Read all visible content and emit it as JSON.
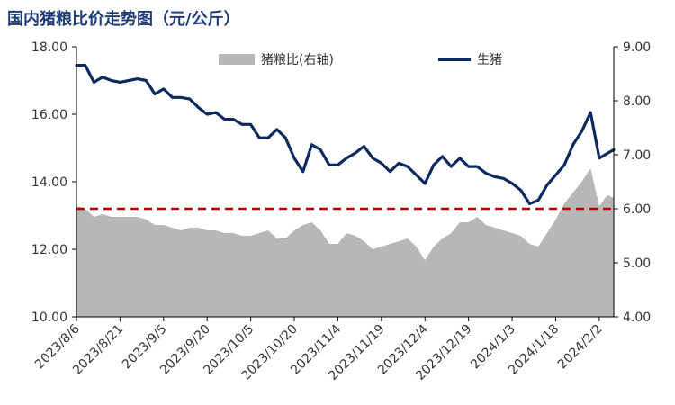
{
  "chart_data": {
    "type": "line",
    "title": "国内猪粮比价走势图（元/公斤）",
    "legend": {
      "placement": "top-center",
      "entries": [
        {
          "name": "猪粮比(右轴)",
          "type": "area",
          "color": "#b7b7b7"
        },
        {
          "name": "生猪",
          "type": "line",
          "color": "#0d2a5e"
        }
      ]
    },
    "y_left": {
      "min": 10,
      "max": 18,
      "ticks": [
        "10.00",
        "12.00",
        "14.00",
        "16.00",
        "18.00"
      ]
    },
    "y_right": {
      "min": 4,
      "max": 9,
      "ticks": [
        "4.00",
        "5.00",
        "6.00",
        "7.00",
        "8.00",
        "9.00"
      ]
    },
    "x_ticks": [
      "2023/8/6",
      "2023/8/21",
      "2023/9/5",
      "2023/9/20",
      "2023/10/5",
      "2023/10/20",
      "2023/11/4",
      "2023/11/19",
      "2023/12/4",
      "2023/12/19",
      "2024/1/3",
      "2024/1/18",
      "2024/2/2"
    ],
    "reference_line": {
      "axis": "right",
      "value": 6.0,
      "style": "dashed",
      "color": "#c00000"
    },
    "series": [
      {
        "name": "生猪",
        "axis": "left",
        "type": "line",
        "color": "#0d2a5e",
        "x": [
          "2023/8/6",
          "2023/8/9",
          "2023/8/12",
          "2023/8/15",
          "2023/8/18",
          "2023/8/21",
          "2023/8/24",
          "2023/8/27",
          "2023/8/30",
          "2023/9/2",
          "2023/9/5",
          "2023/9/8",
          "2023/9/11",
          "2023/9/14",
          "2023/9/17",
          "2023/9/20",
          "2023/9/23",
          "2023/9/26",
          "2023/9/29",
          "2023/10/2",
          "2023/10/5",
          "2023/10/8",
          "2023/10/11",
          "2023/10/14",
          "2023/10/17",
          "2023/10/20",
          "2023/10/23",
          "2023/10/26",
          "2023/10/29",
          "2023/11/1",
          "2023/11/4",
          "2023/11/7",
          "2023/11/10",
          "2023/11/13",
          "2023/11/16",
          "2023/11/19",
          "2023/11/22",
          "2023/11/25",
          "2023/11/28",
          "2023/12/1",
          "2023/12/4",
          "2023/12/7",
          "2023/12/10",
          "2023/12/13",
          "2023/12/16",
          "2023/12/19",
          "2023/12/22",
          "2023/12/25",
          "2023/12/28",
          "2023/12/31",
          "2024/1/3",
          "2024/1/6",
          "2024/1/9",
          "2024/1/12",
          "2024/1/15",
          "2024/1/18",
          "2024/1/21",
          "2024/1/24",
          "2024/1/27",
          "2024/1/30",
          "2024/2/2",
          "2024/2/4",
          "2024/2/5",
          "2024/2/7"
        ],
        "values": [
          17.45,
          17.45,
          16.95,
          17.1,
          17.0,
          16.95,
          17.0,
          17.05,
          17.0,
          16.6,
          16.75,
          16.5,
          16.5,
          16.45,
          16.2,
          16.0,
          16.05,
          15.85,
          15.85,
          15.7,
          15.7,
          15.3,
          15.3,
          15.55,
          15.3,
          14.7,
          14.3,
          15.1,
          14.95,
          14.5,
          14.5,
          14.7,
          14.85,
          15.05,
          14.7,
          14.55,
          14.3,
          14.55,
          14.45,
          14.2,
          13.95,
          14.5,
          14.75,
          14.45,
          14.7,
          14.45,
          14.45,
          14.25,
          14.15,
          14.1,
          13.95,
          13.75,
          13.35,
          13.45,
          13.9,
          14.2,
          14.5,
          15.1,
          15.5,
          16.05,
          14.7,
          14.8,
          14.85,
          14.95
        ]
      },
      {
        "name": "猪粮比(右轴)",
        "axis": "right",
        "type": "area",
        "color": "#b7b7b7",
        "x": [
          "2023/8/6",
          "2023/8/9",
          "2023/8/12",
          "2023/8/15",
          "2023/8/18",
          "2023/8/21",
          "2023/8/24",
          "2023/8/27",
          "2023/8/30",
          "2023/9/2",
          "2023/9/5",
          "2023/9/8",
          "2023/9/11",
          "2023/9/14",
          "2023/9/17",
          "2023/9/20",
          "2023/9/23",
          "2023/9/26",
          "2023/9/29",
          "2023/10/2",
          "2023/10/5",
          "2023/10/8",
          "2023/10/11",
          "2023/10/14",
          "2023/10/17",
          "2023/10/20",
          "2023/10/23",
          "2023/10/26",
          "2023/10/29",
          "2023/11/1",
          "2023/11/4",
          "2023/11/7",
          "2023/11/10",
          "2023/11/13",
          "2023/11/16",
          "2023/11/19",
          "2023/11/22",
          "2023/11/25",
          "2023/11/28",
          "2023/12/1",
          "2023/12/4",
          "2023/12/7",
          "2023/12/10",
          "2023/12/13",
          "2023/12/16",
          "2023/12/19",
          "2023/12/22",
          "2023/12/25",
          "2023/12/28",
          "2023/12/31",
          "2024/1/3",
          "2024/1/6",
          "2024/1/9",
          "2024/1/12",
          "2024/1/15",
          "2024/1/18",
          "2024/1/21",
          "2024/1/24",
          "2024/1/27",
          "2024/1/30",
          "2024/2/2",
          "2024/2/4",
          "2024/2/5",
          "2024/2/7"
        ],
        "values": [
          6.05,
          6.0,
          5.85,
          5.9,
          5.85,
          5.85,
          5.85,
          5.85,
          5.8,
          5.7,
          5.7,
          5.65,
          5.6,
          5.65,
          5.65,
          5.6,
          5.6,
          5.55,
          5.55,
          5.5,
          5.5,
          5.55,
          5.6,
          5.45,
          5.45,
          5.6,
          5.7,
          5.75,
          5.6,
          5.35,
          5.35,
          5.55,
          5.5,
          5.4,
          5.25,
          5.3,
          5.35,
          5.4,
          5.45,
          5.3,
          5.05,
          5.3,
          5.45,
          5.55,
          5.75,
          5.75,
          5.85,
          5.7,
          5.65,
          5.6,
          5.55,
          5.5,
          5.35,
          5.3,
          5.55,
          5.8,
          6.1,
          6.3,
          6.5,
          6.75,
          6.05,
          6.2,
          6.25,
          6.2
        ]
      }
    ],
    "grid": false
  }
}
